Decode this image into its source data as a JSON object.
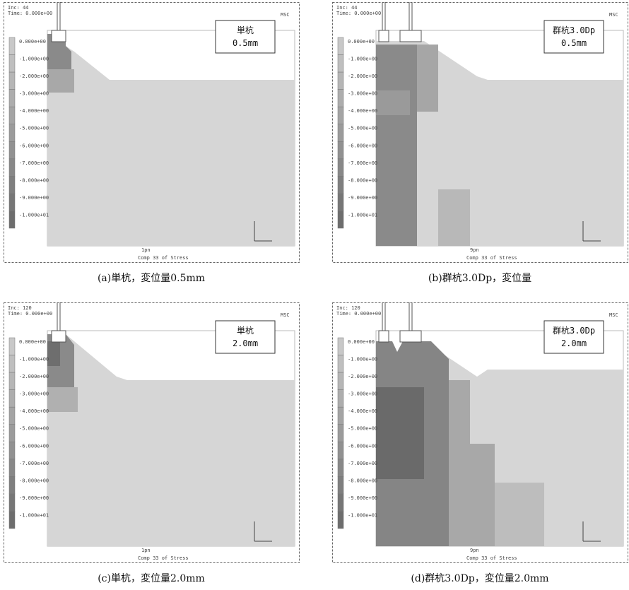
{
  "panels": [
    {
      "header": [
        "Inc: 44",
        "Time: 0.000e+00"
      ],
      "logo": "MSC",
      "label": [
        "単杭",
        "0.5mm"
      ],
      "legend": [
        "0.000e+00",
        "-1.000e+00",
        "-2.000e+00",
        "-3.000e+00",
        "-4.000e+00",
        "-5.000e+00",
        "-6.000e+00",
        "-7.000e+00",
        "-8.000e+00",
        "-9.000e+00",
        "-1.000e+01"
      ],
      "footer_left": "1pn",
      "footer": "Comp 33 of Stress",
      "caption": "(a)単杭，変位量0.5mm"
    },
    {
      "header": [
        "Inc: 44",
        "Time: 0.000e+00"
      ],
      "logo": "MSC",
      "label": [
        "群杭3.0Dp",
        "0.5mm"
      ],
      "legend": [
        "0.000e+00",
        "-1.000e+00",
        "-2.000e+00",
        "-3.000e+00",
        "-4.000e+00",
        "-5.000e+00",
        "-6.000e+00",
        "-7.000e+00",
        "-8.000e+00",
        "-9.000e+00",
        "-1.000e+01"
      ],
      "footer_left": "9pn",
      "footer": "Comp 33 of Stress",
      "caption": "(b)群杭3.0Dp，変位量"
    },
    {
      "header": [
        "Inc: 120",
        "Time: 0.000e+00"
      ],
      "logo": "MSC",
      "label": [
        "単杭",
        "2.0mm"
      ],
      "legend": [
        "0.000e+00",
        "-1.000e+00",
        "-2.000e+00",
        "-3.000e+00",
        "-4.000e+00",
        "-5.000e+00",
        "-6.000e+00",
        "-7.000e+00",
        "-8.000e+00",
        "-9.000e+00",
        "-1.000e+01"
      ],
      "footer_left": "1pn",
      "footer": "Comp 33 of Stress",
      "caption": "(c)単杭，変位量2.0mm"
    },
    {
      "header": [
        "Inc: 120",
        "Time: 0.000e+00"
      ],
      "logo": "MSC",
      "label": [
        "群杭3.0Dp",
        "2.0mm"
      ],
      "legend": [
        "0.000e+00",
        "-1.000e+00",
        "-2.000e+00",
        "-3.000e+00",
        "-4.000e+00",
        "-5.000e+00",
        "-6.000e+00",
        "-7.000e+00",
        "-8.000e+00",
        "-9.000e+00",
        "-1.000e+01"
      ],
      "footer_left": "9pn",
      "footer": "Comp 33 of Stress",
      "caption": "(d)群杭3.0Dp，変位量2.0mm"
    }
  ]
}
